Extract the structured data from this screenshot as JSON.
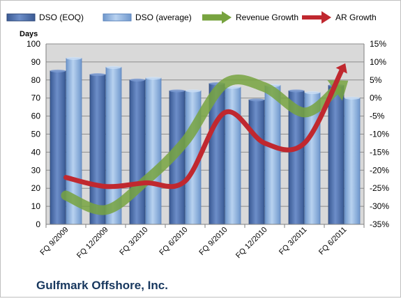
{
  "chart_data": {
    "type": "bar",
    "categories": [
      "FQ 9/2009",
      "FQ 12/2009",
      "FQ 3/2010",
      "FQ 6/2010",
      "FQ 9/2010",
      "FQ 12/2010",
      "FQ 3/2011",
      "FQ 6/2011"
    ],
    "series": [
      {
        "name": "DSO (EOQ)",
        "axis": "left",
        "kind": "bar",
        "color": "#4f6fa8",
        "values": [
          85,
          83,
          80,
          74,
          78,
          69,
          74,
          77
        ]
      },
      {
        "name": "DSO (average)",
        "axis": "left",
        "kind": "bar",
        "color": "#8fb4e3",
        "values": [
          92,
          87,
          81,
          74,
          76,
          77,
          73,
          70
        ]
      },
      {
        "name": "Revenue Growth",
        "axis": "right",
        "kind": "line",
        "color": "#77a33f",
        "values": [
          -27,
          -31,
          -23,
          -12,
          4,
          3,
          -4,
          4
        ]
      },
      {
        "name": "AR Growth",
        "axis": "right",
        "kind": "line",
        "color": "#c0282f",
        "values": [
          -22,
          -24.5,
          -23.5,
          -23,
          -4,
          -12.5,
          -12.5,
          9
        ]
      }
    ],
    "ylabel": "Days",
    "ylim": [
      0,
      100
    ],
    "y_ticks": [
      "0",
      "10",
      "20",
      "30",
      "40",
      "50",
      "60",
      "70",
      "80",
      "90",
      "100"
    ],
    "y2lim": [
      -35,
      15
    ],
    "y2_ticks": [
      "-35%",
      "-30%",
      "-25%",
      "-20%",
      "-15%",
      "-10%",
      "-5%",
      "0%",
      "5%",
      "10%",
      "15%"
    ],
    "grid": true,
    "legend_position": "top",
    "company": "Gulfmark Offshore, Inc.",
    "colors": {
      "plot_background": "#d9d9d9",
      "company_text": "#17375e"
    }
  }
}
